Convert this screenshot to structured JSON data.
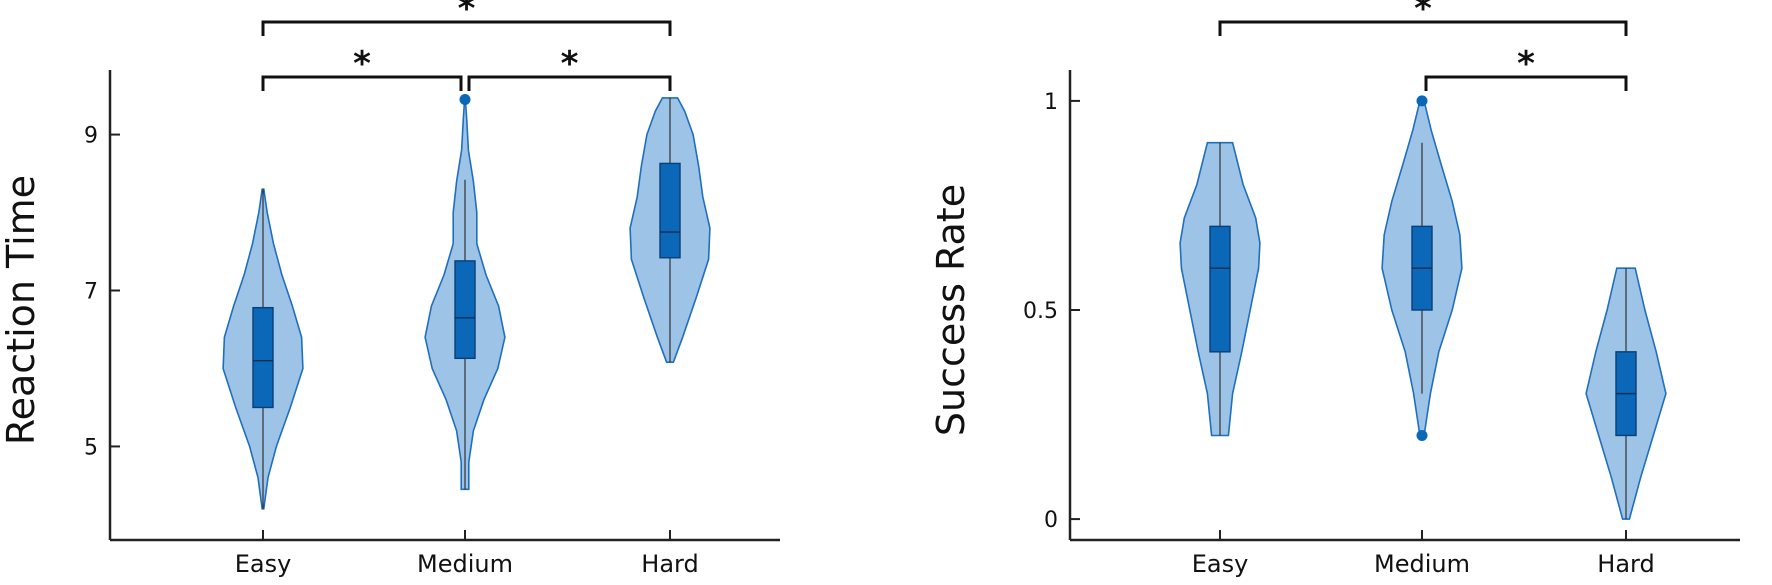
{
  "colors": {
    "violin_fill": "#9dc3e6",
    "violin_edge": "#1f6fbf",
    "box_fill": "#0b67b8",
    "axis": "#222222"
  },
  "chart_data": [
    {
      "type": "violin",
      "ylabel": "Reaction Time",
      "categories": [
        "Easy",
        "Medium",
        "Hard"
      ],
      "ylim": [
        3.8,
        9.7
      ],
      "yticks": [
        5,
        7,
        9
      ],
      "grid": false,
      "groups": [
        {
          "category": "Easy",
          "range": [
            4.2,
            8.3
          ],
          "q1": 5.5,
          "median": 6.1,
          "q3": 6.78,
          "whisker_low": 4.2,
          "whisker_high": 8.3,
          "outliers": [],
          "density": [
            [
              4.2,
              0.02
            ],
            [
              4.6,
              0.12
            ],
            [
              5.0,
              0.32
            ],
            [
              5.5,
              0.65
            ],
            [
              6.0,
              0.95
            ],
            [
              6.4,
              0.92
            ],
            [
              6.8,
              0.7
            ],
            [
              7.2,
              0.45
            ],
            [
              7.6,
              0.25
            ],
            [
              8.0,
              0.1
            ],
            [
              8.3,
              0.02
            ]
          ]
        },
        {
          "category": "Medium",
          "range": [
            4.45,
            9.45
          ],
          "q1": 6.13,
          "median": 6.65,
          "q3": 7.38,
          "whisker_low": 4.45,
          "whisker_high": 8.42,
          "outliers": [
            9.45
          ],
          "density": [
            [
              4.45,
              0.09
            ],
            [
              4.8,
              0.09
            ],
            [
              5.2,
              0.2
            ],
            [
              5.6,
              0.45
            ],
            [
              6.0,
              0.78
            ],
            [
              6.4,
              0.95
            ],
            [
              6.8,
              0.8
            ],
            [
              7.2,
              0.5
            ],
            [
              7.6,
              0.28
            ],
            [
              8.0,
              0.28
            ],
            [
              8.4,
              0.2
            ],
            [
              8.8,
              0.08
            ],
            [
              9.2,
              0.04
            ],
            [
              9.45,
              0.01
            ]
          ]
        },
        {
          "category": "Hard",
          "range": [
            6.08,
            9.47
          ],
          "q1": 7.42,
          "median": 7.75,
          "q3": 8.63,
          "whisker_low": 6.08,
          "whisker_high": 9.47,
          "outliers": [],
          "density": [
            [
              6.08,
              0.08
            ],
            [
              6.4,
              0.3
            ],
            [
              6.9,
              0.62
            ],
            [
              7.4,
              0.92
            ],
            [
              7.8,
              0.95
            ],
            [
              8.2,
              0.78
            ],
            [
              8.6,
              0.68
            ],
            [
              9.0,
              0.55
            ],
            [
              9.3,
              0.35
            ],
            [
              9.47,
              0.18
            ]
          ]
        }
      ],
      "significance": [
        {
          "from": "Easy",
          "to": "Hard",
          "label": "*"
        },
        {
          "from": "Easy",
          "to": "Medium",
          "label": "*"
        },
        {
          "from": "Medium",
          "to": "Hard",
          "label": "*"
        }
      ]
    },
    {
      "type": "violin",
      "ylabel": "Success Rate",
      "categories": [
        "Easy",
        "Medium",
        "Hard"
      ],
      "ylim": [
        -0.05,
        1.05
      ],
      "yticks": [
        0,
        0.5,
        1
      ],
      "grid": false,
      "groups": [
        {
          "category": "Easy",
          "range": [
            0.2,
            0.9
          ],
          "q1": 0.4,
          "median": 0.6,
          "q3": 0.7,
          "whisker_low": 0.2,
          "whisker_high": 0.9,
          "outliers": [],
          "density": [
            [
              0.2,
              0.2
            ],
            [
              0.3,
              0.3
            ],
            [
              0.4,
              0.52
            ],
            [
              0.5,
              0.72
            ],
            [
              0.6,
              0.92
            ],
            [
              0.66,
              0.95
            ],
            [
              0.72,
              0.85
            ],
            [
              0.8,
              0.55
            ],
            [
              0.9,
              0.3
            ]
          ]
        },
        {
          "category": "Medium",
          "range": [
            0.2,
            1.0
          ],
          "q1": 0.5,
          "median": 0.6,
          "q3": 0.7,
          "whisker_low": 0.3,
          "whisker_high": 0.9,
          "outliers": [
            0.2,
            1.0
          ],
          "density": [
            [
              0.2,
              0.05
            ],
            [
              0.3,
              0.2
            ],
            [
              0.4,
              0.4
            ],
            [
              0.5,
              0.72
            ],
            [
              0.6,
              0.95
            ],
            [
              0.68,
              0.9
            ],
            [
              0.76,
              0.72
            ],
            [
              0.85,
              0.45
            ],
            [
              0.93,
              0.22
            ],
            [
              1.0,
              0.05
            ]
          ]
        },
        {
          "category": "Hard",
          "range": [
            0.0,
            0.6
          ],
          "q1": 0.2,
          "median": 0.3,
          "q3": 0.4,
          "whisker_low": 0.0,
          "whisker_high": 0.6,
          "outliers": [],
          "density": [
            [
              0.0,
              0.08
            ],
            [
              0.1,
              0.35
            ],
            [
              0.2,
              0.65
            ],
            [
              0.3,
              0.95
            ],
            [
              0.4,
              0.72
            ],
            [
              0.5,
              0.45
            ],
            [
              0.6,
              0.22
            ]
          ]
        }
      ],
      "significance": [
        {
          "from": "Easy",
          "to": "Hard",
          "label": "*"
        },
        {
          "from": "Medium",
          "to": "Hard",
          "label": "*"
        }
      ]
    }
  ]
}
